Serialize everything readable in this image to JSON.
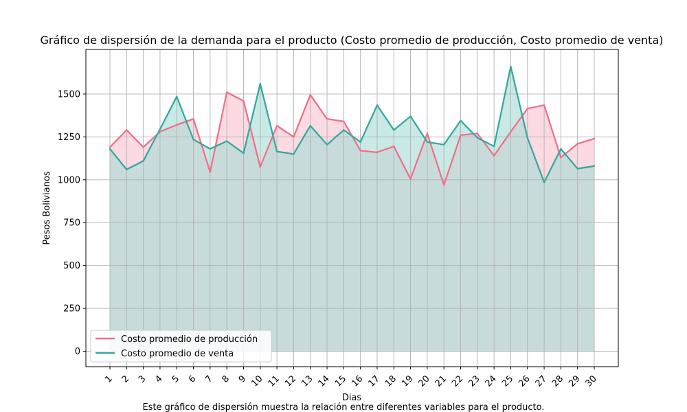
{
  "chart_data": {
    "type": "line",
    "title": "Gráfico de dispersión de la demanda para el producto (Costo promedio de producción, Costo promedio de venta)",
    "xlabel": "Dias",
    "ylabel": "Pesos Bolivianos",
    "caption": "Este gráfico de dispersión muestra la relación entre diferentes variables para el producto.",
    "categories": [
      "1",
      "2",
      "3",
      "4",
      "5",
      "6",
      "7",
      "8",
      "9",
      "10",
      "11",
      "12",
      "13",
      "14",
      "15",
      "16",
      "17",
      "18",
      "19",
      "20",
      "21",
      "22",
      "23",
      "24",
      "25",
      "26",
      "27",
      "28",
      "29",
      "30"
    ],
    "yticks": [
      0,
      250,
      500,
      750,
      1000,
      1250,
      1500
    ],
    "ylim": [
      -90,
      1760
    ],
    "grid": true,
    "legend_position": "lower-left",
    "series": [
      {
        "name": "Costo promedio de producción",
        "color": "#f0708a",
        "fill": "#f9c3cf",
        "values": [
          1190,
          1290,
          1190,
          1280,
          1320,
          1355,
          1045,
          1510,
          1460,
          1075,
          1315,
          1250,
          1495,
          1355,
          1340,
          1170,
          1160,
          1195,
          1005,
          1270,
          970,
          1260,
          1270,
          1140,
          1280,
          1415,
          1435,
          1130,
          1210,
          1240
        ]
      },
      {
        "name": "Costo promedio de venta",
        "color": "#35a99e",
        "fill": "#a8dcd7",
        "values": [
          1180,
          1060,
          1110,
          1295,
          1485,
          1235,
          1180,
          1225,
          1155,
          1560,
          1165,
          1150,
          1315,
          1205,
          1290,
          1220,
          1435,
          1290,
          1370,
          1220,
          1205,
          1345,
          1245,
          1195,
          1660,
          1245,
          985,
          1180,
          1065,
          1080
        ]
      }
    ]
  }
}
